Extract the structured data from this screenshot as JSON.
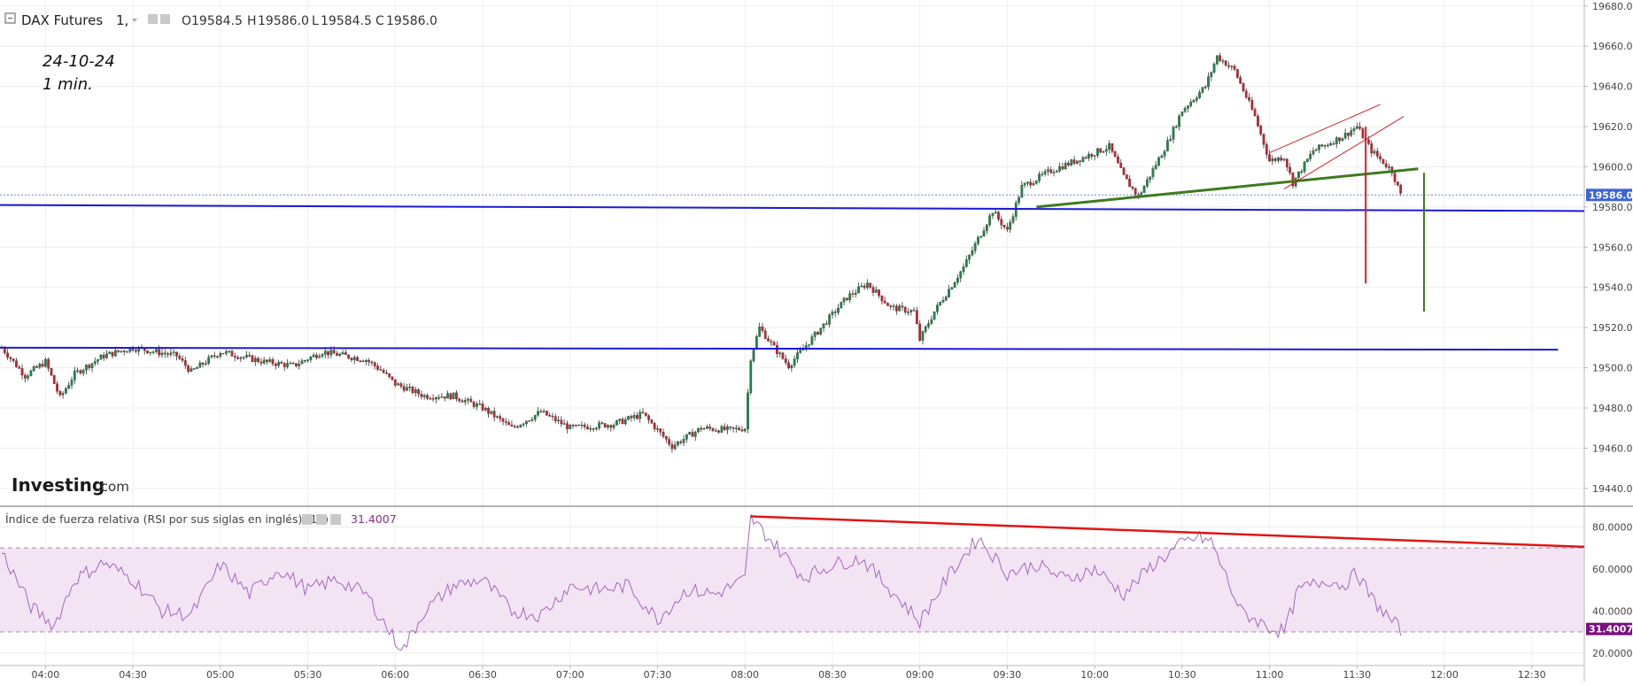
{
  "header": {
    "symbol": "DAX Futures",
    "interval": "1,",
    "open_label": "O",
    "open": "19584.5",
    "high_label": "H",
    "high": "19586.0",
    "low_label": "L",
    "low": "19584.5",
    "close_label": "C",
    "close": "19586.0"
  },
  "annotation": {
    "date": "24-10-24",
    "timeframe": "1 min."
  },
  "brand": {
    "name": "Investing",
    "suffix": ".com"
  },
  "rsi_header": {
    "title": "Índice de fuerza relativa (RSI por sus siglas en inglés) (14)",
    "value": "31.4007"
  },
  "colors": {
    "up": "#1b8a4a",
    "down": "#d0202a",
    "support": "#1a1ad8",
    "trend_green": "#3f7a1f",
    "rsi_line": "#a466c0",
    "rsi_band": "#f3e4f3",
    "rsi_trend": "#e01515",
    "price_tag": "#3d63d6",
    "rsi_tag": "#7a1080"
  },
  "chart_data": [
    {
      "type": "candlestick",
      "title": "DAX Futures, 1,",
      "time_labels": [
        "04:00",
        "04:30",
        "05:00",
        "05:30",
        "06:00",
        "06:30",
        "07:00",
        "07:30",
        "08:00",
        "08:30",
        "09:00",
        "09:30",
        "10:00",
        "10:30",
        "11:00",
        "11:30",
        "12:00",
        "12:30"
      ],
      "y_ticks": [
        19440,
        19460,
        19480,
        19500,
        19520,
        19540,
        19560,
        19580,
        19600,
        19620,
        19640,
        19660,
        19680
      ],
      "y_tick_labels": [
        "19440.0",
        "19460.0",
        "19480.0",
        "19500.0",
        "19520.0",
        "19540.0",
        "19560.0",
        "19580.0",
        "19600.0",
        "19620.0",
        "19640.0",
        "19660.0",
        "19680.0"
      ],
      "ylim": [
        19432,
        19683
      ],
      "xlim": [
        "03:45",
        "12:48"
      ],
      "last_price": 19586.0,
      "last_price_label": "19586.0",
      "price_path": [
        [
          "03:45",
          19510
        ],
        [
          "03:53",
          19496
        ],
        [
          "04:00",
          19503
        ],
        [
          "04:05",
          19485
        ],
        [
          "04:10",
          19497
        ],
        [
          "04:20",
          19506
        ],
        [
          "04:30",
          19510
        ],
        [
          "04:45",
          19506
        ],
        [
          "04:50",
          19498
        ],
        [
          "05:00",
          19508
        ],
        [
          "05:15",
          19503
        ],
        [
          "05:25",
          19501
        ],
        [
          "05:35",
          19508
        ],
        [
          "05:50",
          19504
        ],
        [
          "05:55",
          19499
        ],
        [
          "06:00",
          19492
        ],
        [
          "06:10",
          19486
        ],
        [
          "06:20",
          19486
        ],
        [
          "06:30",
          19480
        ],
        [
          "06:40",
          19470
        ],
        [
          "06:50",
          19478
        ],
        [
          "07:00",
          19470
        ],
        [
          "07:15",
          19472
        ],
        [
          "07:25",
          19477
        ],
        [
          "07:35",
          19461
        ],
        [
          "07:45",
          19470
        ],
        [
          "07:55",
          19469
        ],
        [
          "08:00",
          19470
        ],
        [
          "08:02",
          19505
        ],
        [
          "08:05",
          19520
        ],
        [
          "08:10",
          19510
        ],
        [
          "08:15",
          19501
        ],
        [
          "08:25",
          19518
        ],
        [
          "08:35",
          19535
        ],
        [
          "08:42",
          19542
        ],
        [
          "08:50",
          19530
        ],
        [
          "08:58",
          19528
        ],
        [
          "09:00",
          19514
        ],
        [
          "09:05",
          19528
        ],
        [
          "09:15",
          19550
        ],
        [
          "09:25",
          19578
        ],
        [
          "09:30",
          19568
        ],
        [
          "09:35",
          19590
        ],
        [
          "09:45",
          19598
        ],
        [
          "09:55",
          19604
        ],
        [
          "10:05",
          19610
        ],
        [
          "10:10",
          19595
        ],
        [
          "10:15",
          19585
        ],
        [
          "10:25",
          19612
        ],
        [
          "10:30",
          19628
        ],
        [
          "10:38",
          19640
        ],
        [
          "10:42",
          19655
        ],
        [
          "10:48",
          19648
        ],
        [
          "10:55",
          19625
        ],
        [
          "11:00",
          19603
        ],
        [
          "11:05",
          19605
        ],
        [
          "11:08",
          19592
        ],
        [
          "11:15",
          19608
        ],
        [
          "11:25",
          19615
        ],
        [
          "11:30",
          19620
        ],
        [
          "11:35",
          19608
        ],
        [
          "11:42",
          19598
        ],
        [
          "11:45",
          19586
        ]
      ],
      "levels": [
        {
          "y": 19510,
          "label": "support"
        },
        {
          "y": 19580,
          "label": "support"
        }
      ],
      "trendlines": [
        "neckline",
        "wedge-upper",
        "wedge-lower",
        "target-red",
        "target-green"
      ],
      "grid": true
    },
    {
      "type": "line",
      "title": "Índice de fuerza relativa (RSI por sus siglas en inglés) (14)",
      "y_ticks": [
        20,
        40,
        60,
        80
      ],
      "y_tick_labels": [
        "20.0000",
        "40.0000",
        "60.0000",
        "80.0000"
      ],
      "ylim": [
        14,
        89
      ],
      "bands": [
        30,
        70
      ],
      "last_value": 31.4007,
      "last_value_label": "31.4007",
      "rsi_path": [
        [
          "03:45",
          68
        ],
        [
          "03:55",
          42
        ],
        [
          "04:03",
          33
        ],
        [
          "04:10",
          55
        ],
        [
          "04:20",
          63
        ],
        [
          "04:30",
          55
        ],
        [
          "04:40",
          40
        ],
        [
          "04:50",
          38
        ],
        [
          "05:00",
          62
        ],
        [
          "05:10",
          48
        ],
        [
          "05:20",
          60
        ],
        [
          "05:30",
          50
        ],
        [
          "05:40",
          55
        ],
        [
          "05:50",
          48
        ],
        [
          "06:00",
          26
        ],
        [
          "06:03",
          22
        ],
        [
          "06:10",
          40
        ],
        [
          "06:20",
          52
        ],
        [
          "06:30",
          55
        ],
        [
          "06:40",
          40
        ],
        [
          "06:50",
          38
        ],
        [
          "07:00",
          52
        ],
        [
          "07:10",
          50
        ],
        [
          "07:20",
          52
        ],
        [
          "07:30",
          36
        ],
        [
          "07:40",
          50
        ],
        [
          "07:50",
          48
        ],
        [
          "08:00",
          55
        ],
        [
          "08:02",
          84
        ],
        [
          "08:10",
          72
        ],
        [
          "08:20",
          56
        ],
        [
          "08:30",
          62
        ],
        [
          "08:40",
          65
        ],
        [
          "08:50",
          50
        ],
        [
          "09:00",
          35
        ],
        [
          "09:10",
          57
        ],
        [
          "09:20",
          75
        ],
        [
          "09:30",
          58
        ],
        [
          "09:40",
          62
        ],
        [
          "09:50",
          55
        ],
        [
          "10:00",
          60
        ],
        [
          "10:10",
          48
        ],
        [
          "10:20",
          62
        ],
        [
          "10:30",
          72
        ],
        [
          "10:35",
          75
        ],
        [
          "10:40",
          73
        ],
        [
          "10:50",
          40
        ],
        [
          "11:00",
          32
        ],
        [
          "11:05",
          30
        ],
        [
          "11:10",
          50
        ],
        [
          "11:20",
          55
        ],
        [
          "11:25",
          52
        ],
        [
          "11:30",
          58
        ],
        [
          "11:35",
          46
        ],
        [
          "11:42",
          35
        ],
        [
          "11:45",
          31.4
        ]
      ],
      "divergence_line": [
        [
          "08:02",
          85
        ],
        [
          "12:48",
          70.5
        ]
      ],
      "grid": true
    }
  ]
}
